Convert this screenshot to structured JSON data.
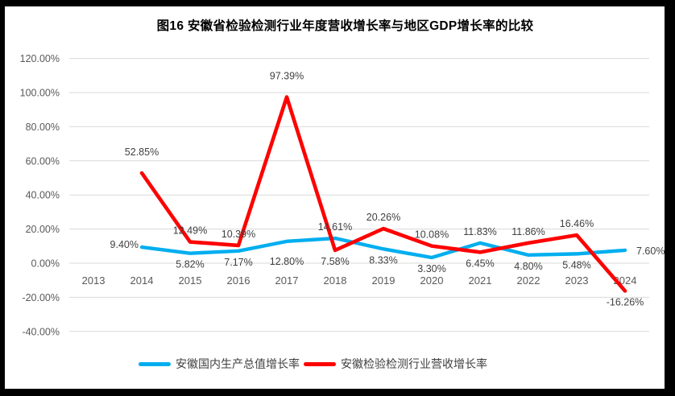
{
  "colors": {
    "frame": "#000000",
    "paper": "#FFFFFF",
    "grid": "#D9D9D9",
    "axis_text": "#595959",
    "data_label": "#404040",
    "title_text": "#000000",
    "gdp_line": "#00AEEF",
    "industry_line": "#FE0000"
  },
  "chart_data": {
    "type": "line",
    "title": "图16 安徽省检验检测行业年度营收增长率与地区GDP增长率的比较",
    "xlabel": "",
    "ylabel": "",
    "ylim": [
      -40,
      120
    ],
    "grid": "horizontal",
    "legend_position": "bottom",
    "categories": [
      "2013",
      "2014",
      "2015",
      "2016",
      "2017",
      "2018",
      "2019",
      "2020",
      "2021",
      "2022",
      "2023",
      "2024"
    ],
    "y_axis": {
      "tick_values": [
        120,
        100,
        80,
        60,
        40,
        20,
        0,
        -20,
        -40
      ],
      "tick_labels": [
        "120.00%",
        "100.00%",
        "80.00%",
        "60.00%",
        "40.00%",
        "20.00%",
        "0.00%",
        "-20.00%",
        "-40.00%"
      ]
    },
    "series": [
      {
        "name": "安徽国内生产总值增长率",
        "color": "#00AEEF",
        "values": [
          null,
          9.4,
          5.82,
          7.17,
          12.8,
          14.61,
          8.33,
          3.3,
          11.83,
          4.8,
          5.48,
          7.6
        ],
        "point_labels": [
          null,
          "9.40%",
          "5.82%",
          "7.17%",
          "12.80%",
          "14.61%",
          "8.33%",
          "3.30%",
          "11.83%",
          "4.80%",
          "5.48%",
          "7.60%"
        ],
        "label_pos": [
          null,
          "left",
          "below",
          "below",
          "below-far",
          "above",
          "below",
          "below",
          "above",
          "below",
          "below",
          "right"
        ]
      },
      {
        "name": "安徽检验检测行业营收增长率",
        "color": "#FE0000",
        "values": [
          null,
          52.85,
          12.49,
          10.39,
          97.39,
          7.58,
          20.26,
          10.08,
          6.45,
          11.86,
          16.46,
          -16.26
        ],
        "point_labels": [
          null,
          "52.85%",
          "12.49%",
          "10.39%",
          "97.39%",
          "7.58%",
          "20.26%",
          "10.08%",
          "6.45%",
          "11.86%",
          "16.46%",
          "-16.26%"
        ],
        "label_pos": [
          null,
          "above-far",
          "above",
          "above",
          "above-far",
          "below",
          "above",
          "above",
          "below",
          "above",
          "above",
          "below"
        ]
      }
    ]
  }
}
